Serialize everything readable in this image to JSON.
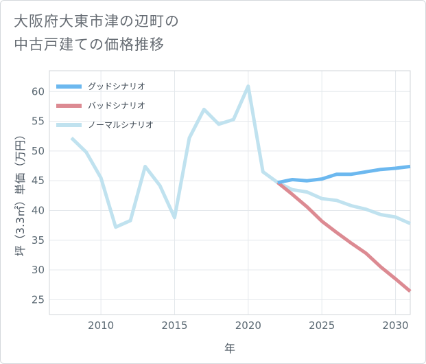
{
  "title_lines": [
    "大阪府大東市津の辺町の",
    "中古戸建ての価格推移"
  ],
  "chart_data": {
    "type": "line",
    "title": "大阪府大東市津の辺町の中古戸建ての価格推移",
    "xlabel": "年",
    "ylabel": "坪（3.3㎡）単価（万円）",
    "xlim": [
      2006.5,
      2031
    ],
    "ylim": [
      22.5,
      63.5
    ],
    "xticks": [
      2010,
      2015,
      2020,
      2025,
      2030
    ],
    "yticks": [
      25,
      30,
      35,
      40,
      45,
      50,
      55,
      60
    ],
    "grid": true,
    "legend_position": "top-left",
    "series": [
      {
        "name": "グッドシナリオ",
        "color": "#6cb8ef",
        "x": [
          2022,
          2023,
          2024,
          2025,
          2026,
          2027,
          2028,
          2029,
          2030,
          2031
        ],
        "y": [
          44.7,
          45.2,
          45.0,
          45.3,
          46.1,
          46.1,
          46.5,
          46.9,
          47.1,
          47.4
        ]
      },
      {
        "name": "バッドシナリオ",
        "color": "#dc8a92",
        "x": [
          2022,
          2023,
          2024,
          2025,
          2026,
          2027,
          2028,
          2029,
          2030,
          2031
        ],
        "y": [
          44.7,
          42.7,
          40.6,
          38.2,
          36.3,
          34.5,
          32.8,
          30.5,
          28.5,
          26.4
        ]
      },
      {
        "name": "ノーマルシナリオ",
        "color": "#c0e2ef",
        "x": [
          2008,
          2009,
          2010,
          2011,
          2012,
          2013,
          2014,
          2015,
          2016,
          2017,
          2018,
          2019,
          2020,
          2021,
          2022,
          2023,
          2024,
          2025,
          2026,
          2027,
          2028,
          2029,
          2030,
          2031
        ],
        "y": [
          52.2,
          49.8,
          45.5,
          37.2,
          38.3,
          47.4,
          44.2,
          38.8,
          52.2,
          57.0,
          54.5,
          55.3,
          60.9,
          46.5,
          44.7,
          43.5,
          43.1,
          42.0,
          41.7,
          40.8,
          40.2,
          39.3,
          38.9,
          37.8
        ]
      }
    ]
  }
}
